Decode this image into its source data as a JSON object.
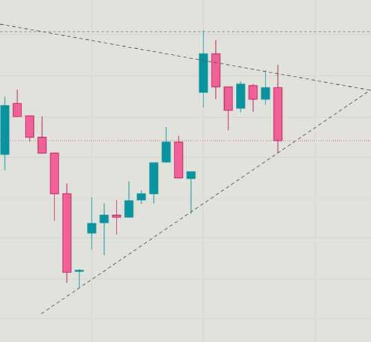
{
  "chart_data": {
    "type": "candlestick",
    "xlim": [
      -0.39,
      29.5
    ],
    "ylim": [
      0,
      496
    ],
    "xticks": [
      7,
      16,
      25
    ],
    "yticks": [
      34,
      91,
      151,
      208,
      268,
      326,
      386,
      446
    ],
    "grid": true,
    "up_color": "#0a929e",
    "down_color": "#f06297",
    "open": [
      272,
      346,
      328,
      297,
      274,
      215,
      103,
      158,
      173,
      184,
      181,
      206,
      215,
      261,
      290,
      237,
      362,
      418,
      370,
      339,
      372,
      352,
      369
    ],
    "high": [
      356,
      366,
      328,
      327,
      274,
      230,
      106,
      210,
      201,
      206,
      233,
      220,
      260,
      312,
      299,
      247,
      452,
      438,
      370,
      378,
      374,
      394,
      402
    ],
    "low": [
      249,
      326,
      290,
      273,
      176,
      86,
      79,
      134,
      126,
      156,
      181,
      200,
      201,
      260,
      237,
      186,
      340,
      352,
      307,
      333,
      334,
      344,
      274
    ],
    "close": [
      343,
      327,
      297,
      274,
      215,
      101,
      104,
      172,
      184,
      181,
      205,
      215,
      260,
      290,
      238,
      247,
      418,
      370,
      336,
      374,
      352,
      369,
      292
    ],
    "trend_lines": [
      {
        "x": [
          -0.39,
          29.5
        ],
        "y": [
          461,
          365
        ]
      },
      {
        "x": [
          2.94,
          29.5
        ],
        "y": [
          41,
          366
        ]
      }
    ],
    "levels": [
      {
        "value": 450,
        "color": "#8a8a8a"
      },
      {
        "value": 292,
        "color": "#e05a6a"
      }
    ]
  }
}
